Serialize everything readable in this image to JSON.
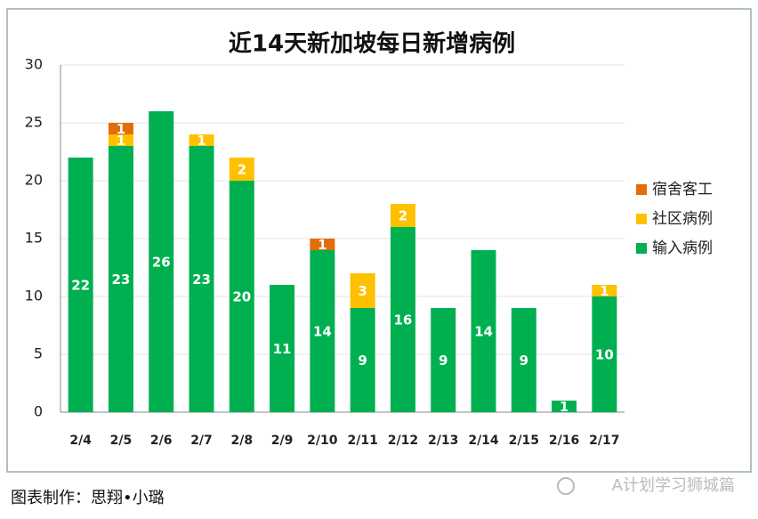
{
  "chart_data": {
    "type": "stacked-bar",
    "title": "近14天新加坡每日新增病例",
    "categories": [
      "2/4",
      "2/5",
      "2/6",
      "2/7",
      "2/8",
      "2/9",
      "2/10",
      "2/11",
      "2/12",
      "2/13",
      "2/14",
      "2/15",
      "2/16",
      "2/17"
    ],
    "series": [
      {
        "name": "输入病例",
        "color": "#00b050",
        "values": [
          22,
          23,
          26,
          23,
          20,
          11,
          14,
          9,
          16,
          9,
          14,
          9,
          1,
          10
        ]
      },
      {
        "name": "社区病例",
        "color": "#ffc000",
        "values": [
          0,
          1,
          0,
          1,
          2,
          0,
          0,
          3,
          2,
          0,
          0,
          0,
          0,
          1
        ]
      },
      {
        "name": "宿舍客工",
        "color": "#e46c0a",
        "values": [
          0,
          1,
          0,
          0,
          0,
          0,
          1,
          0,
          0,
          0,
          0,
          0,
          0,
          0
        ]
      }
    ],
    "ylim": [
      0,
      30
    ],
    "yticks": [
      0,
      5,
      10,
      15,
      20,
      25,
      30
    ],
    "grid": true,
    "legend": "right"
  },
  "caption": "图表制作：思翔•小璐",
  "watermark": "A计划学习狮城篇"
}
